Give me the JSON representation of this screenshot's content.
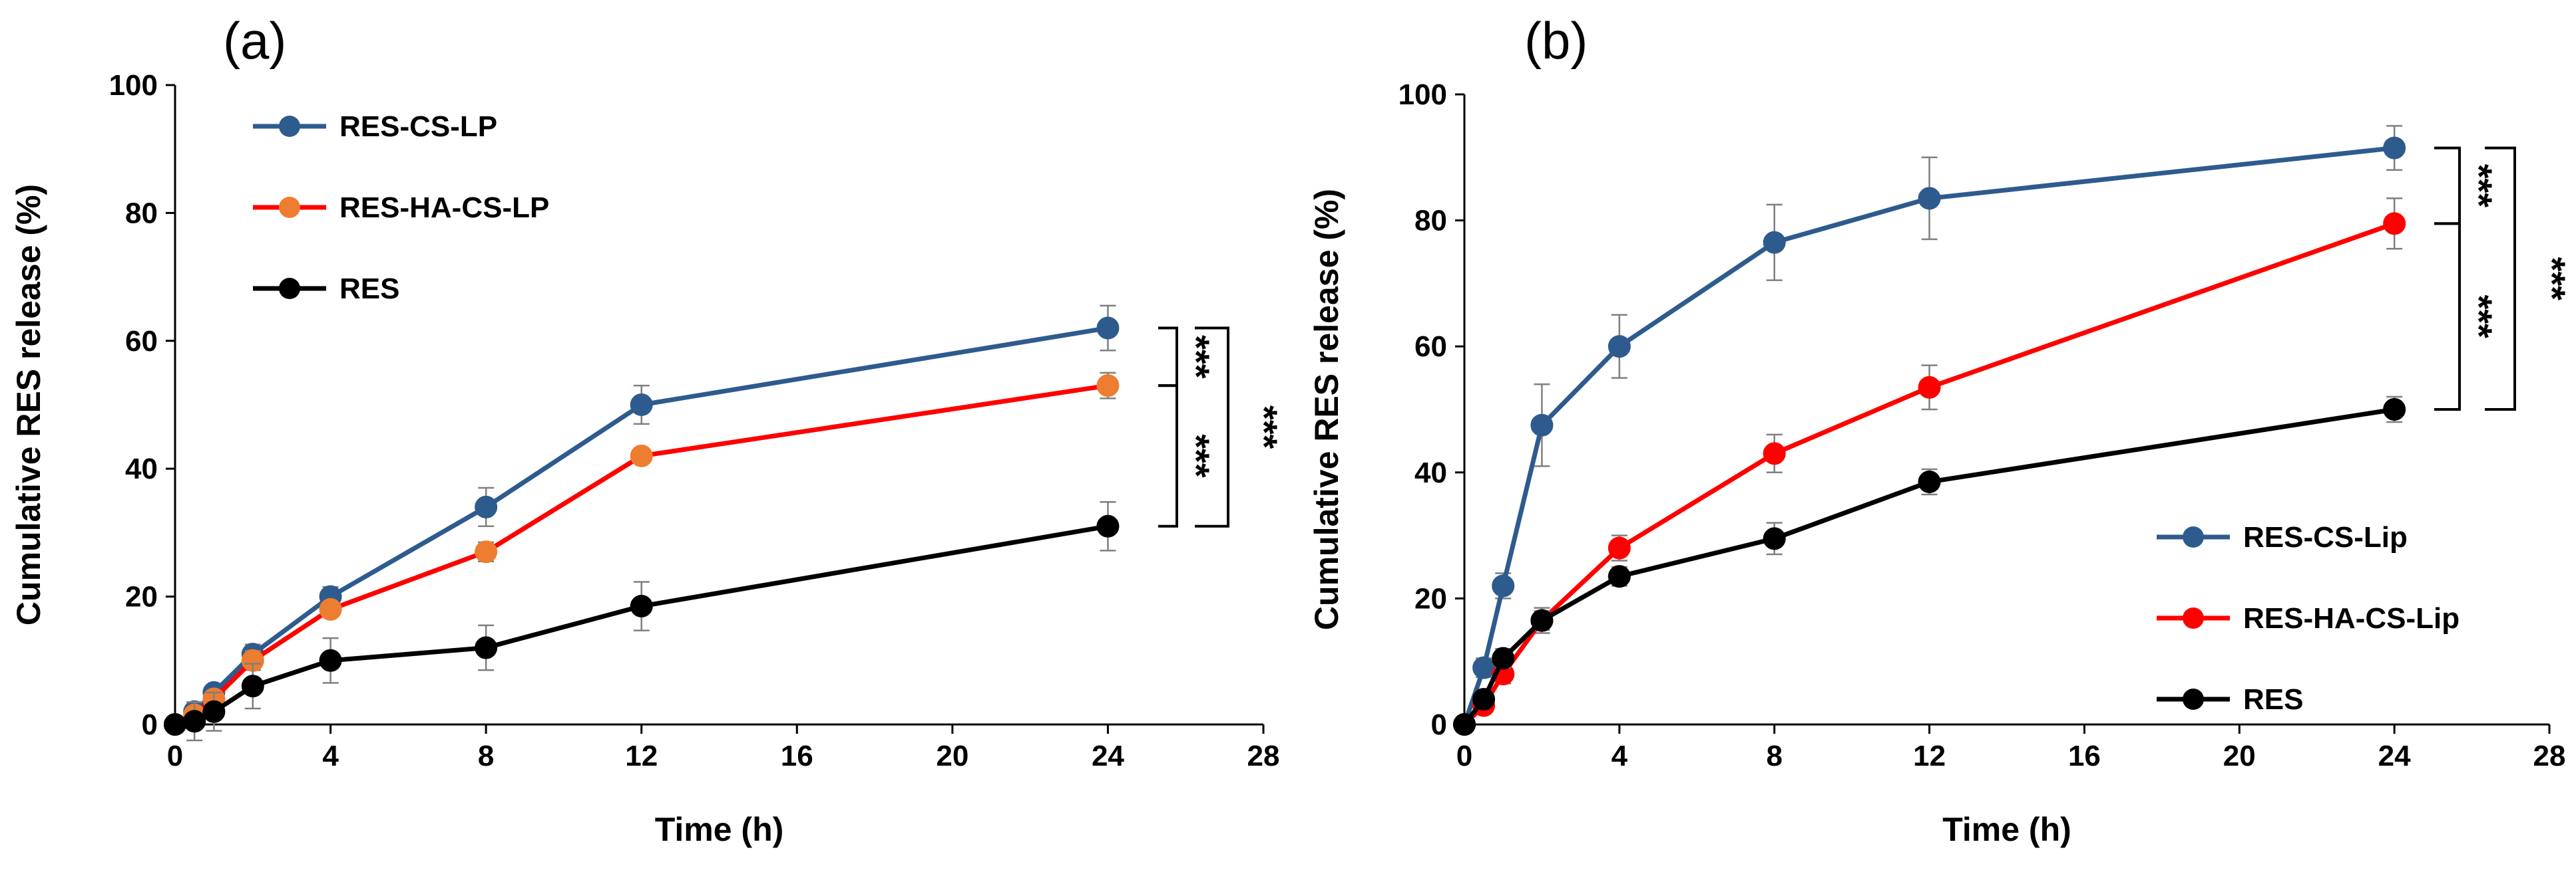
{
  "chart_data": [
    {
      "type": "line",
      "panel_label": "(a)",
      "xlabel": "Time (h)",
      "ylabel": "Cumulative RES release (%)",
      "xlim": [
        0,
        28
      ],
      "ylim": [
        0,
        100
      ],
      "xticks": [
        "0",
        "4",
        "8",
        "12",
        "16",
        "20",
        "24",
        "28"
      ],
      "yticks": [
        "0",
        "20",
        "40",
        "60",
        "80",
        "100"
      ],
      "grid": false,
      "legend_position": "top-left",
      "x": [
        0,
        0.5,
        1,
        2,
        4,
        8,
        12,
        24
      ],
      "series": [
        {
          "name": "RES-CS-LP",
          "color": "#2e5b8e",
          "values": [
            0,
            2,
            5,
            11,
            20,
            34,
            50,
            62
          ],
          "errors": [
            0,
            1,
            1,
            1.5,
            1.5,
            3,
            3,
            3.5
          ]
        },
        {
          "name": "RES-HA-CS-LP",
          "color": "#ed7d31",
          "line_color": "#ff0000",
          "values": [
            0,
            1.5,
            4,
            10,
            18,
            27,
            42,
            53
          ],
          "errors": [
            0,
            1,
            1,
            1.5,
            1,
            1.5,
            1,
            2
          ]
        },
        {
          "name": "RES",
          "color": "#000000",
          "values": [
            0,
            0.5,
            2,
            6,
            10,
            12,
            18.5,
            31
          ],
          "errors": [
            0,
            3,
            3,
            3.5,
            3.5,
            3.5,
            3.8,
            3.8
          ]
        }
      ],
      "significance": [
        {
          "label": "***",
          "between": [
            "RES-CS-LP",
            "RES-HA-CS-LP"
          ]
        },
        {
          "label": "***",
          "between": [
            "RES-HA-CS-LP",
            "RES"
          ]
        },
        {
          "label": "***",
          "between": [
            "RES-CS-LP",
            "RES"
          ]
        }
      ]
    },
    {
      "type": "line",
      "panel_label": "(b)",
      "xlabel": "Time (h)",
      "ylabel": "Cumulative RES release (%)",
      "xlim": [
        0,
        28
      ],
      "ylim": [
        0,
        100
      ],
      "xticks": [
        "0",
        "4",
        "8",
        "12",
        "16",
        "20",
        "24",
        "28"
      ],
      "yticks": [
        "0",
        "20",
        "40",
        "60",
        "80",
        "100"
      ],
      "grid": false,
      "legend_position": "bottom-right",
      "x": [
        0,
        0.5,
        1,
        2,
        4,
        8,
        12,
        24
      ],
      "series": [
        {
          "name": "RES-CS-Lip",
          "color": "#2e5b8e",
          "values": [
            0,
            9,
            22,
            47.5,
            60,
            76.5,
            83.5,
            91.5
          ],
          "errors": [
            0,
            1.5,
            2,
            6.5,
            5,
            6,
            6.5,
            3.5
          ]
        },
        {
          "name": "RES-HA-CS-Lip",
          "color": "#ff0000",
          "values": [
            0,
            3,
            8,
            16.5,
            28,
            43,
            53.5,
            79.5
          ],
          "errors": [
            0,
            1,
            1.5,
            2,
            2,
            3,
            3.5,
            4
          ]
        },
        {
          "name": "RES",
          "color": "#000000",
          "values": [
            0,
            4,
            10.5,
            16.5,
            23.5,
            29.5,
            38.5,
            50
          ],
          "errors": [
            0,
            1,
            1.5,
            1.5,
            1.5,
            2.5,
            2,
            2
          ]
        }
      ],
      "significance": [
        {
          "label": "***",
          "between": [
            "RES-CS-Lip",
            "RES-HA-CS-Lip"
          ]
        },
        {
          "label": "***",
          "between": [
            "RES-HA-CS-Lip",
            "RES"
          ]
        },
        {
          "label": "***",
          "between": [
            "RES-CS-Lip",
            "RES"
          ]
        }
      ]
    }
  ]
}
